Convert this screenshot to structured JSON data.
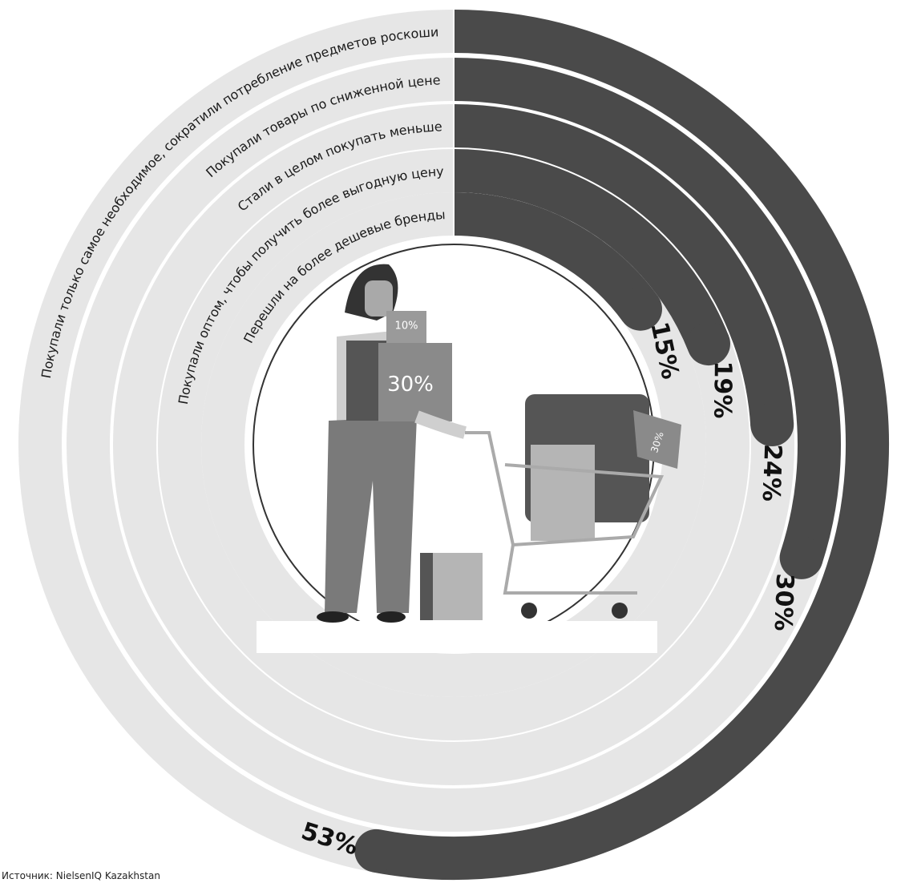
{
  "chart_data": {
    "type": "radial-bar",
    "categories": [
      "Покупали только самое необходимое, сократили потребление предметов роскоши",
      "Покупали товары по сниженной цене",
      "Стали в целом покупать меньше",
      "Покупали оптом, чтобы получить более выгодную цену",
      "Перешли на более дешевые бренды"
    ],
    "values": [
      53,
      30,
      24,
      19,
      15
    ],
    "value_labels": [
      "53%",
      "30%",
      "24%",
      "19%",
      "15%"
    ],
    "color": "#4a4a4a",
    "track_color": "#e6e6e6",
    "source": "Источник: NielsenIQ Kazakhstan",
    "illustration_tags": [
      "10%",
      "30%",
      "30%"
    ]
  }
}
